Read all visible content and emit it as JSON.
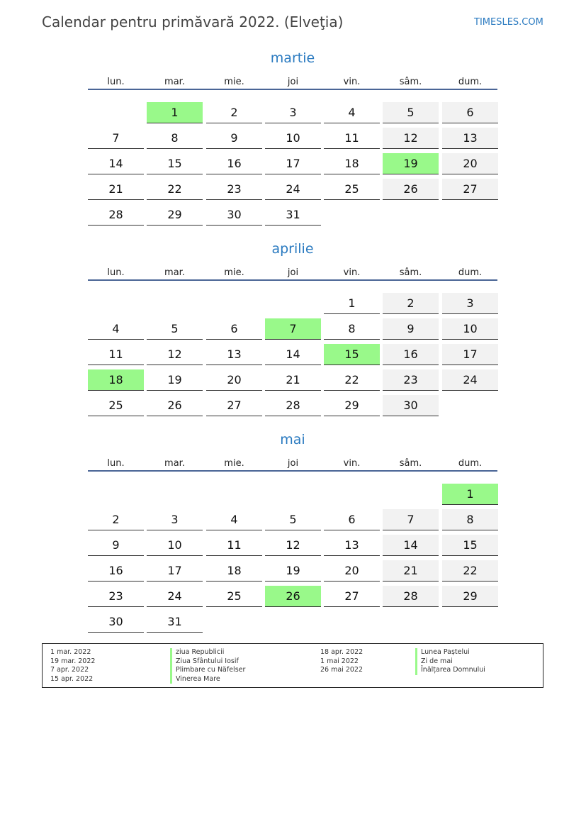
{
  "header": {
    "title": "Calendar pentru primăvară 2022. (Elveţia)",
    "site": "TIMESLES.COM"
  },
  "weekdays": [
    "lun.",
    "mar.",
    "mie.",
    "joi",
    "vin.",
    "sâm.",
    "dum."
  ],
  "colors": {
    "accent": "#2a7ac0",
    "holiday": "#99f98a",
    "weekend": "#f2f2f2"
  },
  "months": [
    {
      "name": "martie",
      "weeks": [
        [
          "",
          "1",
          "2",
          "3",
          "4",
          "5",
          "6"
        ],
        [
          "7",
          "8",
          "9",
          "10",
          "11",
          "12",
          "13"
        ],
        [
          "14",
          "15",
          "16",
          "17",
          "18",
          "19",
          "20"
        ],
        [
          "21",
          "22",
          "23",
          "24",
          "25",
          "26",
          "27"
        ],
        [
          "28",
          "29",
          "30",
          "31",
          "",
          "",
          ""
        ]
      ],
      "holidays": [
        "1",
        "19"
      ]
    },
    {
      "name": "aprilie",
      "weeks": [
        [
          "",
          "",
          "",
          "",
          "1",
          "2",
          "3"
        ],
        [
          "4",
          "5",
          "6",
          "7",
          "8",
          "9",
          "10"
        ],
        [
          "11",
          "12",
          "13",
          "14",
          "15",
          "16",
          "17"
        ],
        [
          "18",
          "19",
          "20",
          "21",
          "22",
          "23",
          "24"
        ],
        [
          "25",
          "26",
          "27",
          "28",
          "29",
          "30",
          ""
        ]
      ],
      "holidays": [
        "7",
        "15",
        "18"
      ]
    },
    {
      "name": "mai",
      "weeks": [
        [
          "",
          "",
          "",
          "",
          "",
          "",
          "1"
        ],
        [
          "2",
          "3",
          "4",
          "5",
          "6",
          "7",
          "8"
        ],
        [
          "9",
          "10",
          "11",
          "12",
          "13",
          "14",
          "15"
        ],
        [
          "16",
          "17",
          "18",
          "19",
          "20",
          "21",
          "22"
        ],
        [
          "23",
          "24",
          "25",
          "26",
          "27",
          "28",
          "29"
        ],
        [
          "30",
          "31",
          "",
          "",
          "",
          "",
          ""
        ]
      ],
      "holidays": [
        "1",
        "26"
      ]
    }
  ],
  "legend": [
    [
      {
        "date": "1 mar. 2022",
        "name": "ziua Republicii"
      },
      {
        "date": "19 mar. 2022",
        "name": "Ziua Sfântului Iosif"
      },
      {
        "date": "7 apr. 2022",
        "name": "Plimbare cu Näfelser"
      },
      {
        "date": "15 apr. 2022",
        "name": "Vinerea Mare"
      }
    ],
    [
      {
        "date": "18 apr. 2022",
        "name": "Lunea Paștelui"
      },
      {
        "date": "1 mai 2022",
        "name": "Zi de mai"
      },
      {
        "date": "26 mai 2022",
        "name": "Înălțarea Domnului"
      }
    ]
  ]
}
